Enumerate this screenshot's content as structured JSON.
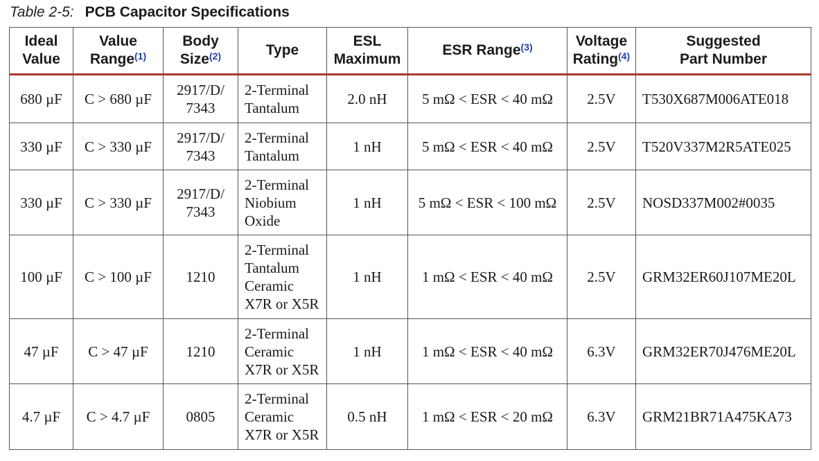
{
  "caption": {
    "label": "Table 2-5:",
    "title": "PCB Capacitor Specifications"
  },
  "headers": {
    "ideal_value": [
      "Ideal",
      "Value"
    ],
    "value_range": [
      "Value",
      "Range"
    ],
    "value_range_note": "(1)",
    "body_size": [
      "Body",
      "Size"
    ],
    "body_size_note": "(2)",
    "type": "Type",
    "esl_maximum": [
      "ESL",
      "Maximum"
    ],
    "esr_range": "ESR Range",
    "esr_range_note": "(3)",
    "voltage_rating": [
      "Voltage",
      "Rating"
    ],
    "voltage_rating_note": "(4)",
    "suggested_part": [
      "Suggested",
      "Part Number"
    ]
  },
  "rows": [
    {
      "ideal_value": "680 µF",
      "value_range": "C > 680 µF",
      "body_size": [
        "2917/D/",
        "7343"
      ],
      "type": [
        "2-Terminal",
        "Tantalum"
      ],
      "esl_maximum": "2.0 nH",
      "esr_range": "5 mΩ < ESR < 40 mΩ",
      "voltage_rating": "2.5V",
      "part_number": "T530X687M006ATE018"
    },
    {
      "ideal_value": "330 µF",
      "value_range": "C > 330 µF",
      "body_size": [
        "2917/D/",
        "7343"
      ],
      "type": [
        "2-Terminal",
        "Tantalum"
      ],
      "esl_maximum": "1 nH",
      "esr_range": "5 mΩ < ESR < 40 mΩ",
      "voltage_rating": "2.5V",
      "part_number": "T520V337M2R5ATE025"
    },
    {
      "ideal_value": "330 µF",
      "value_range": "C > 330 µF",
      "body_size": [
        "2917/D/",
        "7343"
      ],
      "type": [
        "2-Terminal",
        "Niobium",
        "Oxide"
      ],
      "esl_maximum": "1 nH",
      "esr_range": "5 mΩ < ESR < 100 mΩ",
      "voltage_rating": "2.5V",
      "part_number": "NOSD337M002#0035"
    },
    {
      "ideal_value": "100 µF",
      "value_range": "C > 100 µF",
      "body_size": [
        "1210"
      ],
      "type": [
        "2-Terminal",
        "Tantalum",
        "Ceramic",
        "X7R or X5R"
      ],
      "esl_maximum": "1 nH",
      "esr_range": "1 mΩ < ESR < 40 mΩ",
      "voltage_rating": "2.5V",
      "part_number": "GRM32ER60J107ME20L"
    },
    {
      "ideal_value": "47 µF",
      "value_range": "C > 47 µF",
      "body_size": [
        "1210"
      ],
      "type": [
        "2-Terminal",
        "Ceramic",
        "X7R or X5R"
      ],
      "esl_maximum": "1 nH",
      "esr_range": "1 mΩ < ESR < 40 mΩ",
      "voltage_rating": "6.3V",
      "part_number": "GRM32ER70J476ME20L"
    },
    {
      "ideal_value": "4.7 µF",
      "value_range": "C > 4.7 µF",
      "body_size": [
        "0805"
      ],
      "type": [
        "2-Terminal",
        "Ceramic",
        "X7R or X5R"
      ],
      "esl_maximum": "0.5 nH",
      "esr_range": "1 mΩ < ESR < 20 mΩ",
      "voltage_rating": "6.3V",
      "part_number": "GRM21BR71A475KA73"
    }
  ]
}
